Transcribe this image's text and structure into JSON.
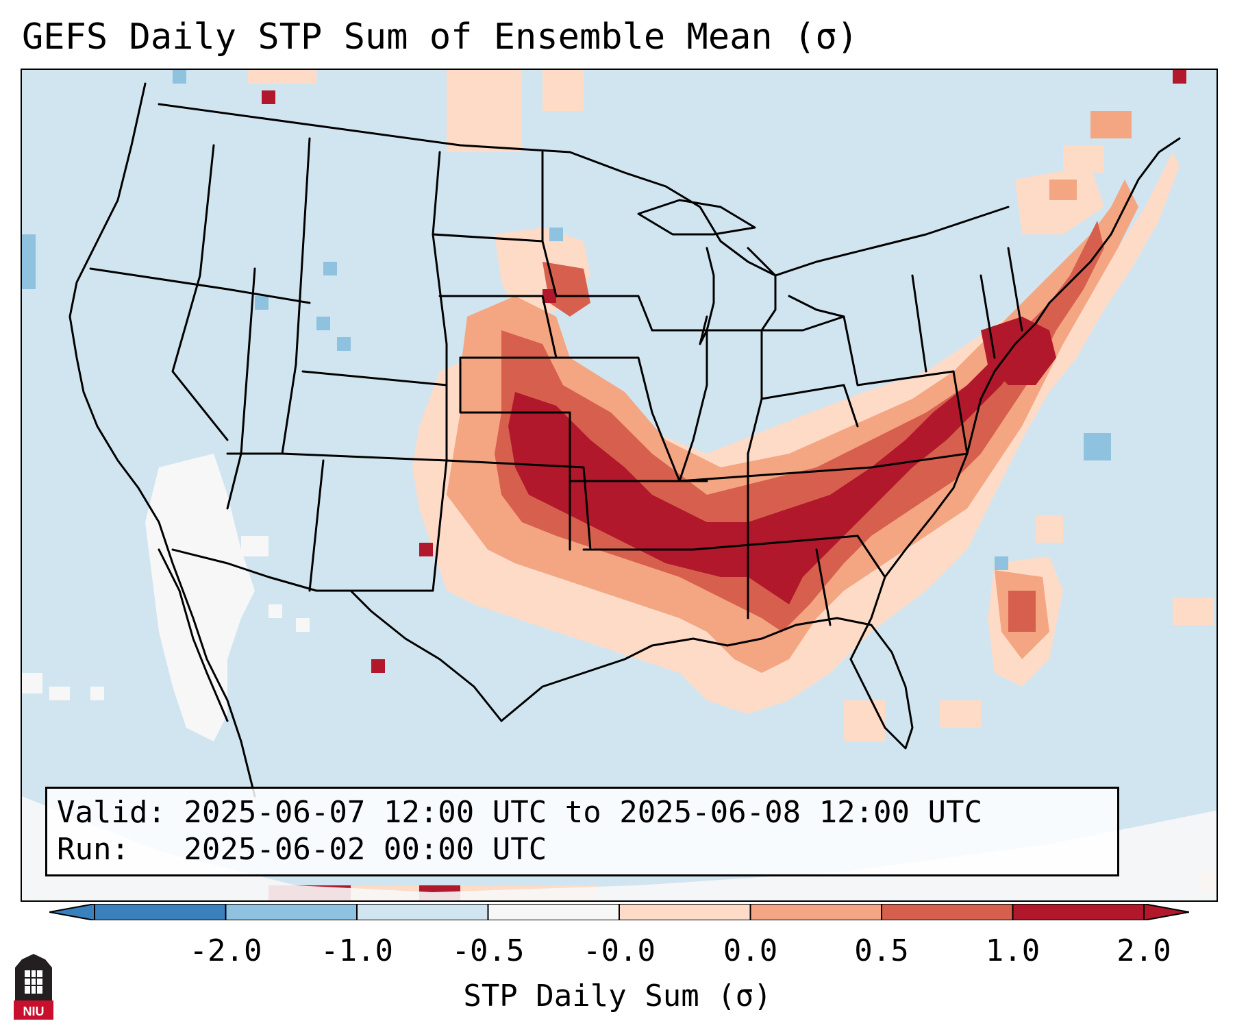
{
  "title": "GEFS Daily STP Sum of Ensemble Mean (σ)",
  "info": {
    "valid_label": "Valid: 2025-06-07 12:00 UTC to 2025-06-08 12:00 UTC",
    "run_label": "Run:   2025-06-02 00:00 UTC"
  },
  "colorbar": {
    "label": "STP Daily Sum (σ)",
    "ticks": [
      "-2.0",
      "-1.0",
      "-0.5",
      "-0.0",
      "0.0",
      "0.5",
      "1.0",
      "2.0"
    ],
    "colors": [
      "#3a80bd",
      "#8fc2df",
      "#d1e5f0",
      "#f7f7f7",
      "#fddbc7",
      "#f4a582",
      "#d6604d",
      "#b2182b"
    ],
    "extend": "both"
  },
  "map": {
    "region": "CONUS",
    "background_color": "#d1e5f0",
    "high_color": "#b2182b",
    "mid_color": "#d6604d",
    "low_color": "#f4a582",
    "lowest_color": "#fddbc7",
    "neutral_color": "#f7f7f7"
  },
  "logo": {
    "text": "NIU"
  }
}
